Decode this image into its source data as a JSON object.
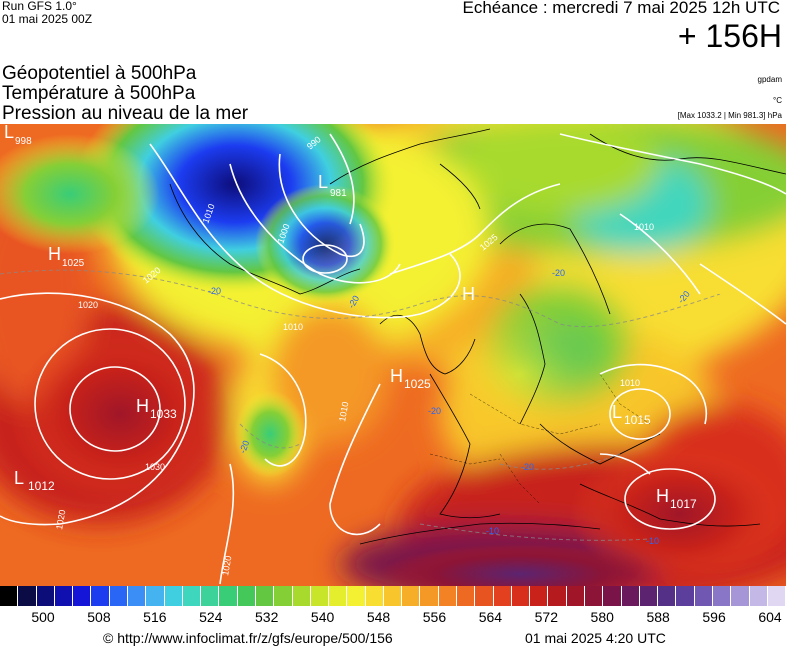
{
  "header": {
    "run_title": "Run GFS 1.0°",
    "run_date": "01 mai 2025 00Z",
    "valid_label": "Echéance : mercredi 7 mai 2025 12h UTC",
    "lead_time": "+ 156H"
  },
  "fields": [
    "Géopotentiel à 500hPa",
    "Température à 500hPa",
    "Pression au niveau de la mer"
  ],
  "units": {
    "geopotential": "gpdam",
    "temperature": "°C",
    "pressure_range": "[Max 1033.2 | Min 981.3] hPa"
  },
  "pressure_centers": [
    {
      "type": "L",
      "value": "998"
    },
    {
      "type": "L",
      "value": "981"
    },
    {
      "type": "H",
      "value": "1025"
    },
    {
      "type": "H",
      "value": ""
    },
    {
      "type": "H",
      "value": "1025"
    },
    {
      "type": "H",
      "value": "1033"
    },
    {
      "type": "L",
      "value": "1012"
    },
    {
      "type": "L",
      "value": "1015"
    },
    {
      "type": "H",
      "value": "1017"
    }
  ],
  "isobar_labels": [
    "1010",
    "1000",
    "990",
    "1010",
    "1020",
    "1020",
    "1030",
    "1020",
    "1020",
    "1010",
    "1025",
    "1010",
    "1010"
  ],
  "isotherm_labels": [
    "-20",
    "-20",
    "-20",
    "-20",
    "-20",
    "-20",
    "-10",
    "-10",
    "-20"
  ],
  "colorbar": {
    "labels": [
      "500",
      "508",
      "516",
      "524",
      "532",
      "540",
      "548",
      "556",
      "564",
      "572",
      "580",
      "588",
      "596",
      "604"
    ],
    "colors": [
      "#000000",
      "#0b0b45",
      "#0d0d7a",
      "#1010b0",
      "#1515d8",
      "#1c3cf0",
      "#2a66f5",
      "#3a8ef5",
      "#45b3f0",
      "#40cfe0",
      "#3fd6be",
      "#3cd29a",
      "#39cd78",
      "#45c85a",
      "#63c742",
      "#85cf36",
      "#a8da2e",
      "#c8e52a",
      "#e4ee2c",
      "#f4f032",
      "#f8de30",
      "#f8c62c",
      "#f6ae28",
      "#f49826",
      "#f28224",
      "#ee6a22",
      "#e85420",
      "#e2401e",
      "#d82e1c",
      "#c8221a",
      "#b51a1f",
      "#a01628",
      "#8c1436",
      "#7a1448",
      "#6a1a5c",
      "#5c2470",
      "#543086",
      "#5c3e9c",
      "#7058b2",
      "#8a76c6",
      "#a696d8",
      "#c4b8e6",
      "#e0d8f2"
    ]
  },
  "footer": {
    "copyright": "© http://www.infoclimat.fr/z/gfs/europe/500/156",
    "issued": "01 mai 2025  4:20 UTC"
  }
}
